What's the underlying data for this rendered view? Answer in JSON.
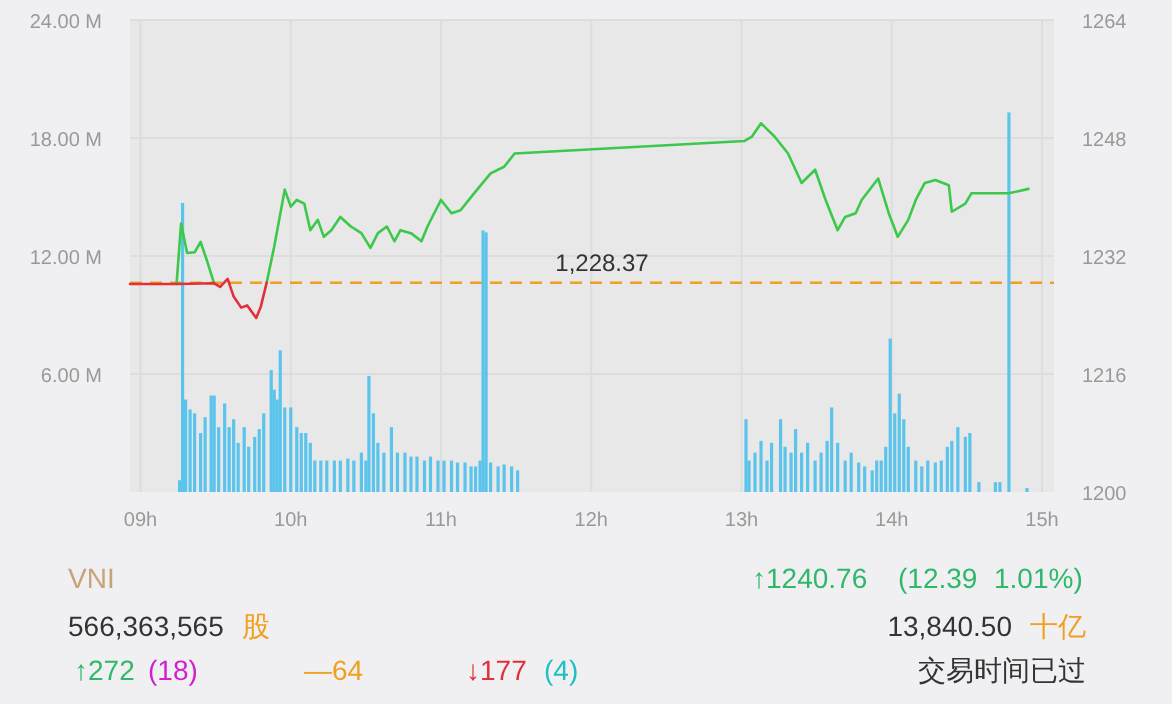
{
  "chart_data": {
    "type": "bar",
    "xlim": [
      8.93,
      15.08
    ],
    "xticks": [
      {
        "value": 9,
        "label": "09h"
      },
      {
        "value": 10,
        "label": "10h"
      },
      {
        "value": 11,
        "label": "11h"
      },
      {
        "value": 12,
        "label": "12h"
      },
      {
        "value": 13,
        "label": "13h"
      },
      {
        "value": 14,
        "label": "14h"
      },
      {
        "value": 15,
        "label": "15h"
      }
    ],
    "ylim": [
      0,
      24
    ],
    "yticks": [
      {
        "value": 6,
        "label": "6.00 M"
      },
      {
        "value": 12,
        "label": "12.00 M"
      },
      {
        "value": 18,
        "label": "18.00 M"
      },
      {
        "value": 24,
        "label": "24.00 M"
      }
    ],
    "y2lim": [
      1200,
      1264
    ],
    "y2ticks": [
      1200,
      1216,
      1232,
      1248,
      1264
    ],
    "grid": true,
    "ref_lines": [
      {
        "axis": "y2",
        "value": 1228.37,
        "label": "1,228.37",
        "color": "#f0a020",
        "line_style": "dashed"
      }
    ],
    "series": [
      {
        "color": "#5bc4ec",
        "x": [
          9.26,
          9.28,
          9.3,
          9.33,
          9.36,
          9.4,
          9.43,
          9.47,
          9.49,
          9.52,
          9.56,
          9.59,
          9.62,
          9.65,
          9.69,
          9.72,
          9.76,
          9.79,
          9.82,
          9.87,
          9.89,
          9.91,
          9.93,
          9.96,
          10.0,
          10.04,
          10.07,
          10.1,
          10.13,
          10.16,
          10.2,
          10.24,
          10.29,
          10.33,
          10.38,
          10.42,
          10.47,
          10.5,
          10.52,
          10.55,
          10.58,
          10.62,
          10.67,
          10.71,
          10.76,
          10.8,
          10.84,
          10.89,
          10.93,
          10.98,
          11.02,
          11.07,
          11.11,
          11.16,
          11.2,
          11.23,
          11.26,
          11.28,
          11.3,
          11.33,
          11.38,
          11.42,
          11.47,
          11.51,
          13.03,
          13.05,
          13.09,
          13.13,
          13.17,
          13.2,
          13.26,
          13.29,
          13.33,
          13.36,
          13.4,
          13.44,
          13.49,
          13.53,
          13.57,
          13.6,
          13.64,
          13.69,
          13.73,
          13.78,
          13.82,
          13.87,
          13.9,
          13.93,
          13.96,
          13.99,
          14.02,
          14.05,
          14.08,
          14.11,
          14.16,
          14.2,
          14.24,
          14.29,
          14.33,
          14.37,
          14.4,
          14.44,
          14.49,
          14.52,
          14.58,
          14.69,
          14.72,
          14.78,
          14.9
        ],
        "values": [
          0.6,
          14.7,
          4.7,
          4.2,
          4.0,
          3.0,
          3.8,
          4.9,
          4.9,
          3.3,
          4.5,
          3.3,
          3.7,
          2.5,
          3.3,
          2.3,
          2.8,
          3.2,
          4.0,
          6.2,
          5.2,
          4.7,
          7.2,
          4.3,
          4.3,
          3.3,
          3.0,
          3.0,
          2.5,
          1.6,
          1.6,
          1.6,
          1.6,
          1.6,
          1.7,
          1.6,
          2.0,
          1.6,
          5.9,
          4.0,
          2.5,
          2.0,
          3.3,
          2.0,
          2.0,
          1.8,
          1.8,
          1.6,
          1.8,
          1.6,
          1.6,
          1.6,
          1.5,
          1.5,
          1.3,
          1.3,
          1.6,
          13.3,
          13.2,
          1.5,
          1.3,
          1.4,
          1.3,
          1.1,
          3.7,
          1.6,
          2.0,
          2.6,
          1.6,
          2.5,
          3.7,
          2.3,
          2.0,
          3.2,
          2.0,
          2.5,
          1.6,
          2.0,
          2.6,
          4.3,
          2.5,
          1.6,
          2.0,
          1.5,
          1.3,
          1.1,
          1.6,
          1.6,
          2.3,
          7.8,
          4.0,
          5.0,
          3.7,
          2.3,
          1.6,
          1.3,
          1.6,
          1.5,
          1.6,
          2.3,
          2.6,
          3.3,
          2.8,
          3.0,
          0.5,
          0.5,
          0.5,
          19.3,
          0.2
        ]
      },
      {
        "type": "line",
        "axis": "y2",
        "color": "#3cc84a",
        "x": [
          9.24,
          9.27,
          9.31,
          9.36,
          9.4,
          9.44,
          9.49
        ],
        "values": [
          1228.2,
          1236.4,
          1232.4,
          1232.5,
          1233.9,
          1231.5,
          1228.3
        ]
      },
      {
        "type": "line",
        "axis": "y2",
        "color": "#3cc84a",
        "x": [
          9.84,
          9.89,
          9.96,
          10.0,
          10.04,
          10.09,
          10.13,
          10.18,
          10.22,
          10.27,
          10.33,
          10.4,
          10.47,
          10.53,
          10.58,
          10.64,
          10.69,
          10.73,
          10.8,
          10.87,
          10.91,
          11.0,
          11.07,
          11.13,
          11.22,
          11.33,
          11.42,
          11.49,
          13.02,
          13.07,
          13.13,
          13.22,
          13.31,
          13.4,
          13.49,
          13.56,
          13.64,
          13.69,
          13.76,
          13.8,
          13.91,
          13.98,
          14.04,
          14.11,
          14.16,
          14.22,
          14.29,
          14.38,
          14.4,
          14.49,
          14.53,
          14.78,
          14.91
        ],
        "values": [
          1228.4,
          1233.3,
          1241.0,
          1238.7,
          1239.6,
          1239.1,
          1235.5,
          1236.9,
          1234.6,
          1235.5,
          1237.3,
          1236.0,
          1235.1,
          1233.1,
          1235.1,
          1236.0,
          1234.0,
          1235.5,
          1235.1,
          1234.0,
          1236.0,
          1239.6,
          1237.8,
          1238.2,
          1240.5,
          1243.2,
          1244.1,
          1245.9,
          1247.6,
          1248.2,
          1250.0,
          1248.2,
          1245.9,
          1241.9,
          1243.7,
          1239.6,
          1235.5,
          1237.3,
          1237.8,
          1239.6,
          1242.5,
          1237.8,
          1234.6,
          1236.9,
          1239.6,
          1241.9,
          1242.3,
          1241.6,
          1238.0,
          1239.1,
          1240.5,
          1240.5,
          1241.1
        ]
      },
      {
        "type": "line",
        "axis": "y2",
        "color": "#e0303a",
        "x": [
          8.93,
          9.24,
          9.49,
          9.53,
          9.58,
          9.62,
          9.67,
          9.71,
          9.77,
          9.8,
          9.84
        ],
        "values": [
          1228.2,
          1228.2,
          1228.3,
          1227.8,
          1228.9,
          1226.5,
          1225.0,
          1225.3,
          1223.6,
          1225.1,
          1228.4
        ]
      }
    ],
    "annotations": [
      "VNI",
      "566,363,565",
      "股",
      "↑1240.76",
      "(12.39",
      "1.01%)",
      "13,840.50",
      "十亿",
      "↑272",
      "(18)",
      "—64",
      "↓177",
      "(4)",
      "交易时间已过"
    ]
  }
}
